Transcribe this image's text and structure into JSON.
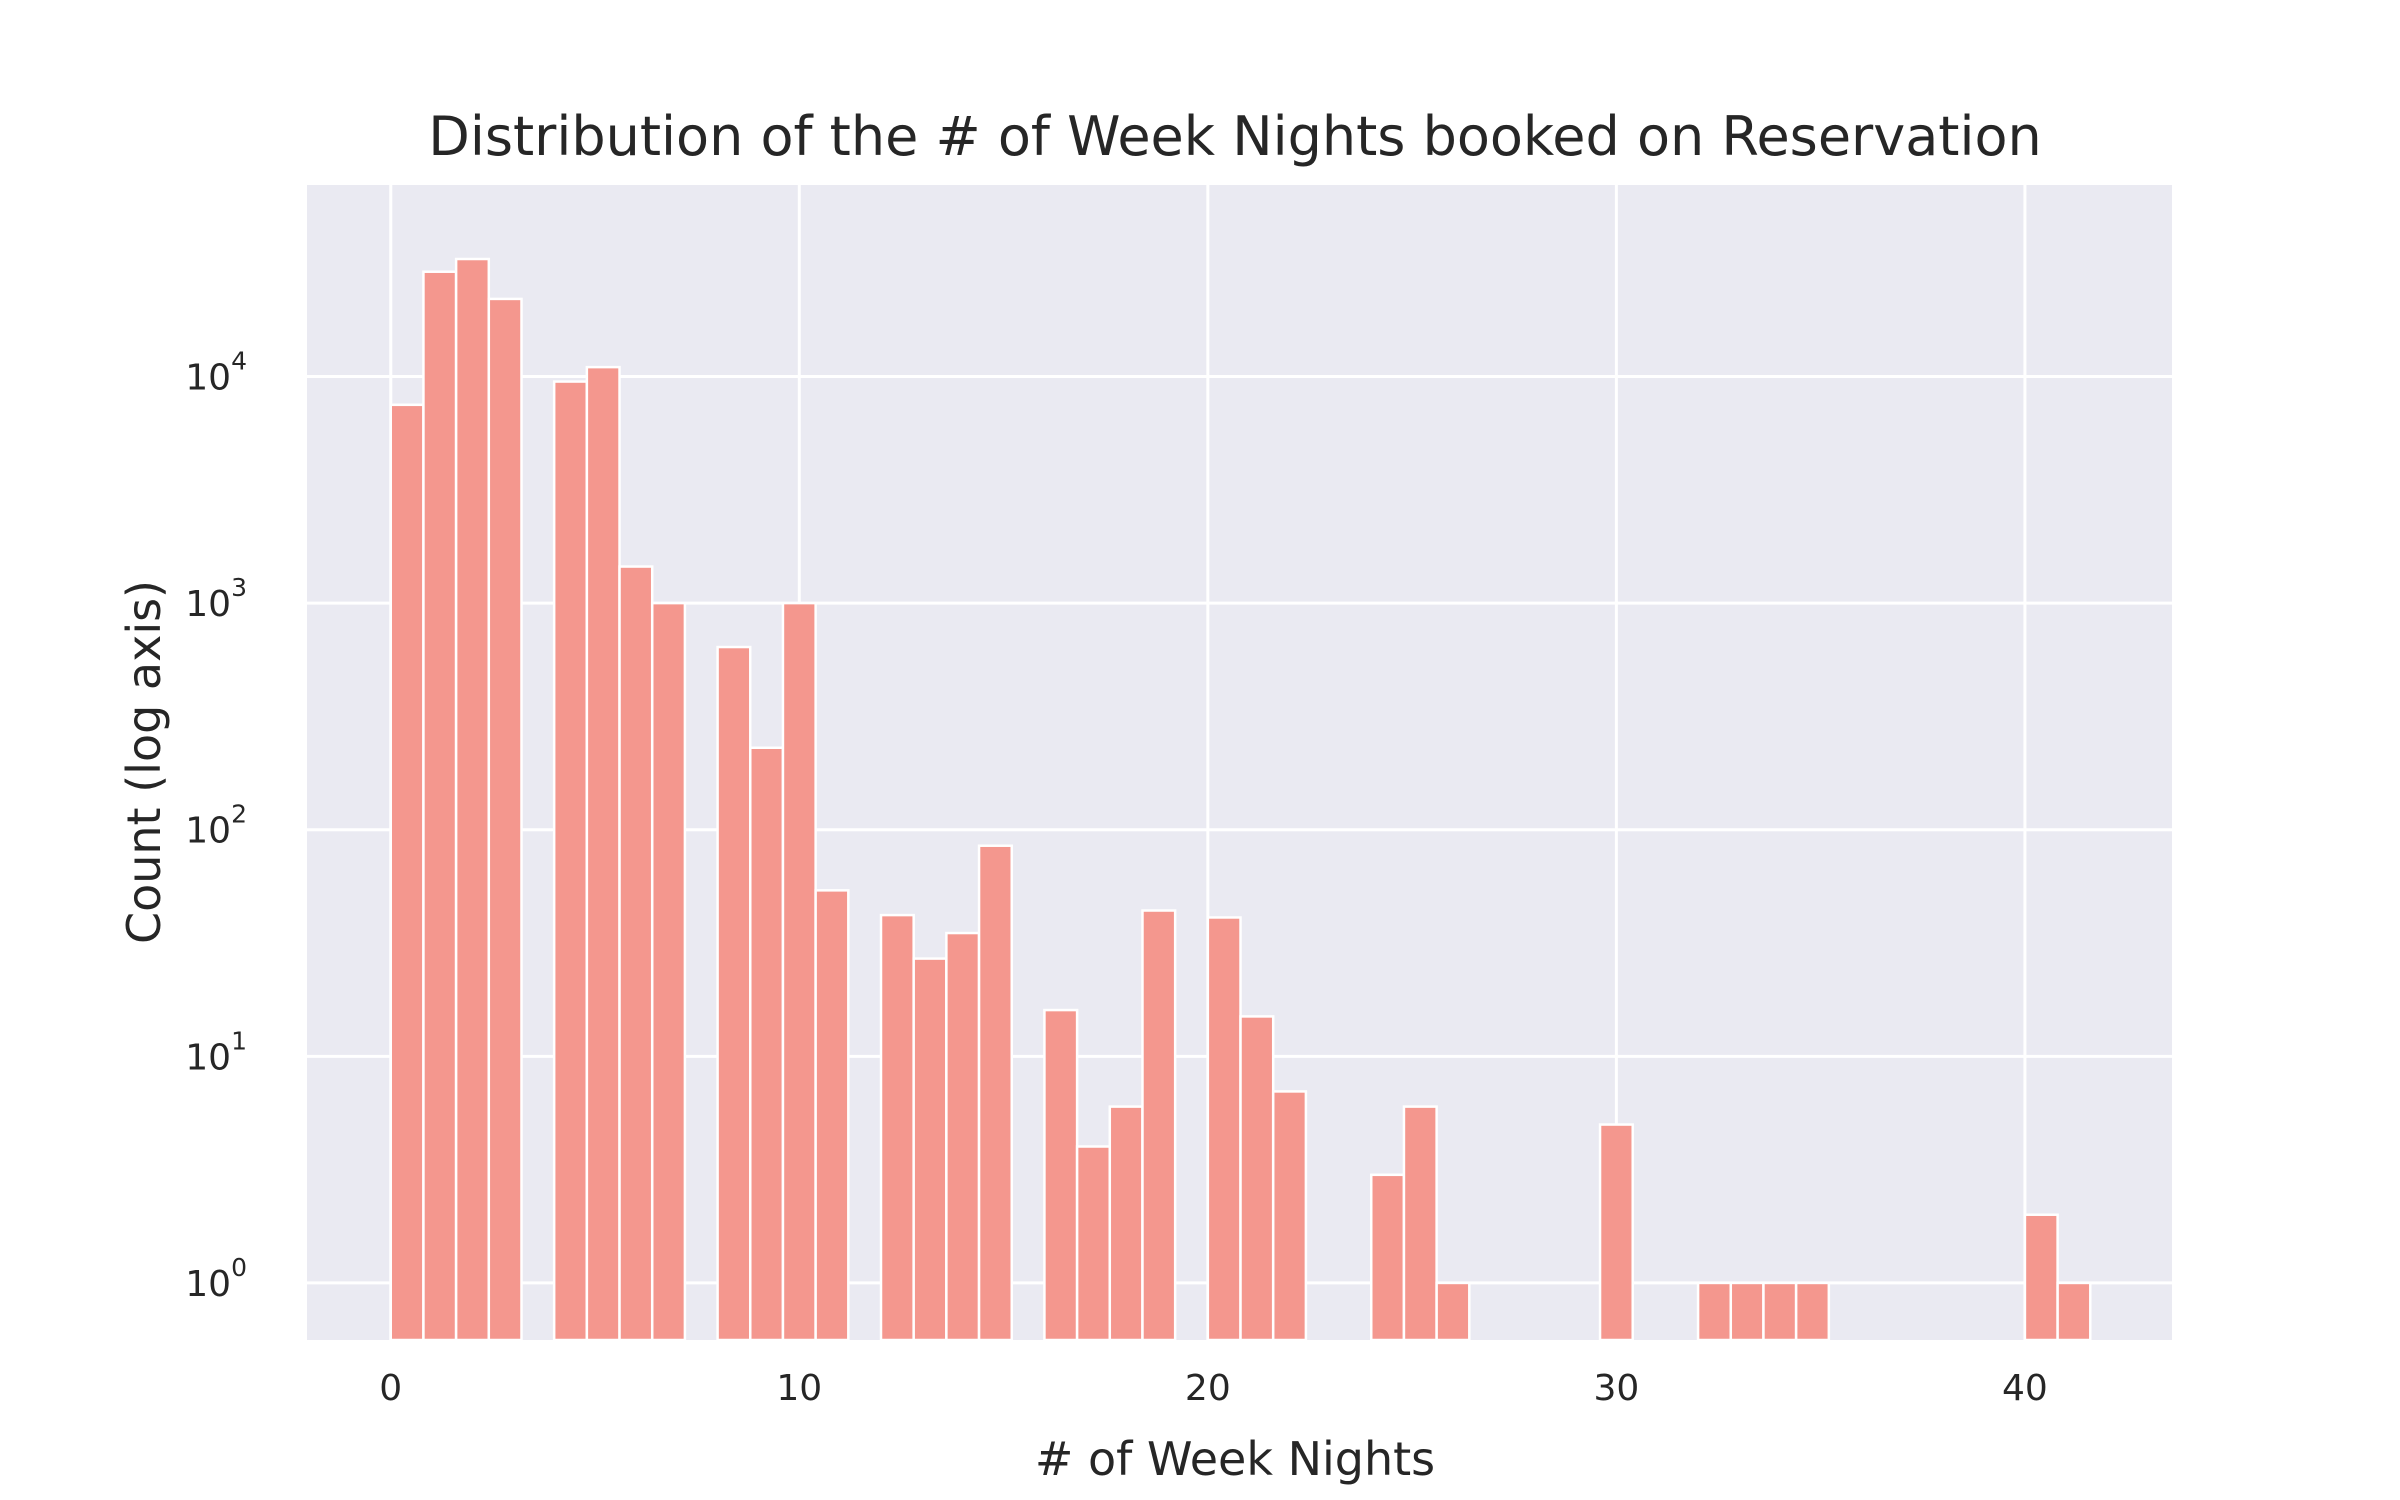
{
  "chart_data": {
    "type": "bar",
    "title": "Distribution of the # of Week Nights booked on Reservation",
    "xlabel": "# of Week Nights",
    "ylabel": "Count (log axis)",
    "yscale": "log",
    "xlim": [
      -2.05,
      43.6
    ],
    "ylim": [
      0.56,
      70000
    ],
    "bin_width": 0.8,
    "xticks": [
      {
        "value": 0,
        "label": "0"
      },
      {
        "value": 10,
        "label": "10"
      },
      {
        "value": 20,
        "label": "20"
      },
      {
        "value": 30,
        "label": "30"
      },
      {
        "value": 40,
        "label": "40"
      }
    ],
    "yticks": [
      {
        "value": 1,
        "base": "10",
        "exp": "0"
      },
      {
        "value": 10,
        "base": "10",
        "exp": "1"
      },
      {
        "value": 100,
        "base": "10",
        "exp": "2"
      },
      {
        "value": 1000,
        "base": "10",
        "exp": "3"
      },
      {
        "value": 10000,
        "base": "10",
        "exp": "4"
      }
    ],
    "grid": true,
    "legend": "none",
    "bars": [
      {
        "x": 0.0,
        "value": 7500
      },
      {
        "x": 0.8,
        "value": 29000
      },
      {
        "x": 1.6,
        "value": 33000
      },
      {
        "x": 2.4,
        "value": 22000
      },
      {
        "x": 4.0,
        "value": 9500
      },
      {
        "x": 4.8,
        "value": 11000
      },
      {
        "x": 5.6,
        "value": 1450
      },
      {
        "x": 6.4,
        "value": 1000
      },
      {
        "x": 8.0,
        "value": 640
      },
      {
        "x": 8.8,
        "value": 230
      },
      {
        "x": 9.6,
        "value": 1000
      },
      {
        "x": 10.4,
        "value": 54
      },
      {
        "x": 12.0,
        "value": 42
      },
      {
        "x": 12.8,
        "value": 27
      },
      {
        "x": 13.6,
        "value": 35
      },
      {
        "x": 14.4,
        "value": 85
      },
      {
        "x": 16.0,
        "value": 16
      },
      {
        "x": 16.8,
        "value": 4
      },
      {
        "x": 17.6,
        "value": 6
      },
      {
        "x": 18.4,
        "value": 44
      },
      {
        "x": 20.0,
        "value": 41
      },
      {
        "x": 20.8,
        "value": 15
      },
      {
        "x": 21.6,
        "value": 7
      },
      {
        "x": 24.0,
        "value": 3
      },
      {
        "x": 24.8,
        "value": 6
      },
      {
        "x": 25.6,
        "value": 1
      },
      {
        "x": 29.6,
        "value": 5
      },
      {
        "x": 32.0,
        "value": 1
      },
      {
        "x": 32.8,
        "value": 1
      },
      {
        "x": 33.6,
        "value": 1
      },
      {
        "x": 34.4,
        "value": 1
      },
      {
        "x": 40.0,
        "value": 2
      },
      {
        "x": 40.8,
        "value": 1
      }
    ]
  },
  "colors": {
    "bar_fill": "#f4978e",
    "bar_edge": "#ffffff",
    "plot_background": "#eaeaf2",
    "grid": "#ffffff",
    "text": "#262626"
  }
}
